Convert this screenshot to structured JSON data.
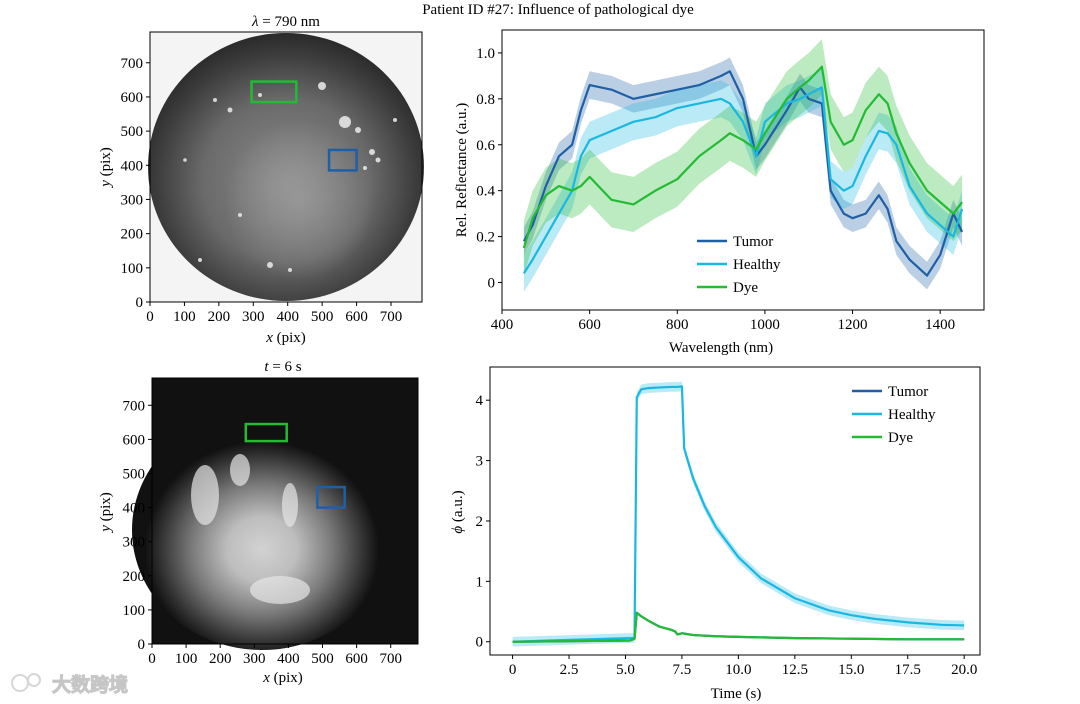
{
  "title": "Patient ID #27: Influence of pathological dye",
  "colors": {
    "tumor": "#1f5fa6",
    "healthy": "#1ab8e0",
    "dye": "#22bb33"
  },
  "watermark": "大数跨境",
  "chart_data": [
    {
      "type": "image",
      "title_var": "λ",
      "title_rest": " = 790 nm",
      "xlabel_var": "x",
      "xlabel_rest": " (pix)",
      "ylabel_var": "y",
      "ylabel_rest": " (pix)",
      "xticks": [
        "0",
        "100",
        "200",
        "300",
        "400",
        "500",
        "600",
        "700"
      ],
      "yticks": [
        "0",
        "100",
        "200",
        "300",
        "400",
        "500",
        "600",
        "700"
      ],
      "xlim": [
        0,
        790
      ],
      "ylim": [
        0,
        790
      ],
      "rois": [
        {
          "name": "Dye",
          "color": "#22bb33",
          "x": [
            295,
            425
          ],
          "y": [
            585,
            645
          ]
        },
        {
          "name": "Tumor",
          "color": "#1f5fa6",
          "x": [
            520,
            600
          ],
          "y": [
            385,
            445
          ]
        }
      ]
    },
    {
      "type": "line",
      "xlabel": "Wavelength (nm)",
      "ylabel": "Rel. Reflectance (a.u.)",
      "xlim": [
        400,
        1500
      ],
      "ylim": [
        -0.12,
        1.1
      ],
      "xticks": [
        400,
        600,
        800,
        1000,
        1200,
        1400
      ],
      "yticks": [
        0,
        0.2,
        0.4,
        0.6,
        0.8,
        1.0
      ],
      "yticklabels": [
        "0",
        "0.2",
        "0.4",
        "0.6",
        "0.8",
        "1.0"
      ],
      "legend": [
        "Tumor",
        "Healthy",
        "Dye"
      ],
      "legend_position": "lower-center",
      "series": [
        {
          "name": "Tumor",
          "color": "#1f5fa6",
          "band": 0.06,
          "x": [
            450,
            470,
            500,
            530,
            560,
            580,
            600,
            650,
            700,
            750,
            800,
            850,
            900,
            920,
            950,
            980,
            1000,
            1050,
            1080,
            1100,
            1130,
            1150,
            1180,
            1200,
            1230,
            1260,
            1280,
            1300,
            1330,
            1370,
            1400,
            1430,
            1450
          ],
          "y": [
            0.18,
            0.25,
            0.42,
            0.55,
            0.6,
            0.75,
            0.86,
            0.84,
            0.8,
            0.82,
            0.84,
            0.86,
            0.9,
            0.92,
            0.8,
            0.55,
            0.6,
            0.75,
            0.85,
            0.8,
            0.78,
            0.4,
            0.3,
            0.28,
            0.3,
            0.38,
            0.32,
            0.18,
            0.1,
            0.03,
            0.12,
            0.3,
            0.22
          ]
        },
        {
          "name": "Healthy",
          "color": "#1ab8e0",
          "band": 0.08,
          "x": [
            450,
            470,
            500,
            530,
            560,
            580,
            600,
            650,
            700,
            750,
            800,
            850,
            900,
            920,
            950,
            980,
            1000,
            1050,
            1080,
            1100,
            1130,
            1150,
            1180,
            1200,
            1230,
            1260,
            1280,
            1300,
            1330,
            1370,
            1400,
            1430,
            1450
          ],
          "y": [
            0.04,
            0.1,
            0.2,
            0.3,
            0.4,
            0.55,
            0.62,
            0.66,
            0.7,
            0.72,
            0.76,
            0.78,
            0.8,
            0.78,
            0.7,
            0.55,
            0.7,
            0.78,
            0.8,
            0.82,
            0.85,
            0.45,
            0.4,
            0.42,
            0.55,
            0.66,
            0.65,
            0.6,
            0.42,
            0.3,
            0.25,
            0.2,
            0.32
          ]
        },
        {
          "name": "Dye",
          "color": "#22bb33",
          "band": 0.12,
          "x": [
            450,
            470,
            500,
            530,
            560,
            580,
            600,
            650,
            700,
            750,
            800,
            850,
            900,
            920,
            950,
            980,
            1000,
            1050,
            1080,
            1100,
            1130,
            1150,
            1180,
            1200,
            1230,
            1260,
            1280,
            1300,
            1330,
            1370,
            1400,
            1430,
            1450
          ],
          "y": [
            0.15,
            0.28,
            0.38,
            0.42,
            0.4,
            0.42,
            0.46,
            0.36,
            0.34,
            0.4,
            0.45,
            0.55,
            0.62,
            0.65,
            0.62,
            0.58,
            0.65,
            0.8,
            0.85,
            0.88,
            0.94,
            0.7,
            0.6,
            0.62,
            0.75,
            0.82,
            0.78,
            0.65,
            0.52,
            0.4,
            0.35,
            0.3,
            0.35
          ]
        }
      ]
    },
    {
      "type": "image",
      "title_var": "t",
      "title_rest": " = 6 s",
      "xlabel_var": "x",
      "xlabel_rest": " (pix)",
      "ylabel_var": "y",
      "ylabel_rest": " (pix)",
      "xticks": [
        "0",
        "100",
        "200",
        "300",
        "400",
        "500",
        "600",
        "700"
      ],
      "yticks": [
        "0",
        "100",
        "200",
        "300",
        "400",
        "500",
        "600",
        "700"
      ],
      "xlim": [
        0,
        780
      ],
      "ylim": [
        0,
        780
      ],
      "rois": [
        {
          "name": "Dye",
          "color": "#22bb33",
          "x": [
            275,
            395
          ],
          "y": [
            595,
            645
          ]
        },
        {
          "name": "Tumor",
          "color": "#1f5fa6",
          "x": [
            485,
            565
          ],
          "y": [
            400,
            460
          ]
        }
      ]
    },
    {
      "type": "line",
      "xlabel": "Time (s)",
      "ylabel_var": "ϕ",
      "ylabel_rest": " (a.u.)",
      "xlim": [
        -1,
        20.7
      ],
      "ylim": [
        -0.22,
        4.55
      ],
      "xticks": [
        0,
        2.5,
        5,
        7.5,
        10,
        12.5,
        15,
        17.5,
        20
      ],
      "xticklabels": [
        "0",
        "2.5",
        "5.0",
        "7.5",
        "10.0",
        "12.5",
        "15.0",
        "17.5",
        "20.0"
      ],
      "yticks": [
        0,
        1,
        2,
        3,
        4
      ],
      "yticklabels": [
        "0",
        "1",
        "2",
        "3",
        "4"
      ],
      "legend": [
        "Tumor",
        "Healthy",
        "Dye"
      ],
      "legend_position": "top-right",
      "series": [
        {
          "name": "Tumor",
          "color": "#1f5fa6",
          "band": 0,
          "x": [
            0,
            2.5,
            5.2,
            5.4,
            5.5,
            5.7,
            6.0,
            6.5,
            7.0,
            7.2,
            7.3,
            7.5,
            8,
            9,
            10,
            12.5,
            15,
            17.5,
            20
          ],
          "y": [
            0,
            0.01,
            0.02,
            0.05,
            0.48,
            0.42,
            0.35,
            0.25,
            0.2,
            0.17,
            0.12,
            0.14,
            0.11,
            0.09,
            0.08,
            0.06,
            0.05,
            0.04,
            0.04
          ]
        },
        {
          "name": "Healthy",
          "color": "#1ab8e0",
          "band": 0.08,
          "x": [
            0,
            2.5,
            5.2,
            5.4,
            5.5,
            5.7,
            6.0,
            6.5,
            7.0,
            7.3,
            7.5,
            7.6,
            8.0,
            8.5,
            9,
            10,
            11,
            12.5,
            14,
            15,
            16,
            17.5,
            19,
            20
          ],
          "y": [
            0,
            0.03,
            0.06,
            0.06,
            4.05,
            4.18,
            4.2,
            4.21,
            4.22,
            4.22,
            4.23,
            3.2,
            2.7,
            2.25,
            1.9,
            1.4,
            1.05,
            0.72,
            0.52,
            0.44,
            0.38,
            0.32,
            0.28,
            0.27
          ]
        },
        {
          "name": "Dye",
          "color": "#22bb33",
          "band": 0,
          "x": [
            0,
            2.5,
            5.2,
            5.4,
            5.5,
            5.7,
            6.0,
            6.5,
            7.0,
            7.2,
            7.3,
            7.5,
            8,
            9,
            10,
            12.5,
            15,
            17.5,
            20
          ],
          "y": [
            0,
            0.01,
            0.02,
            0.05,
            0.48,
            0.42,
            0.35,
            0.25,
            0.2,
            0.17,
            0.12,
            0.14,
            0.11,
            0.09,
            0.08,
            0.06,
            0.05,
            0.04,
            0.04
          ]
        }
      ]
    }
  ]
}
